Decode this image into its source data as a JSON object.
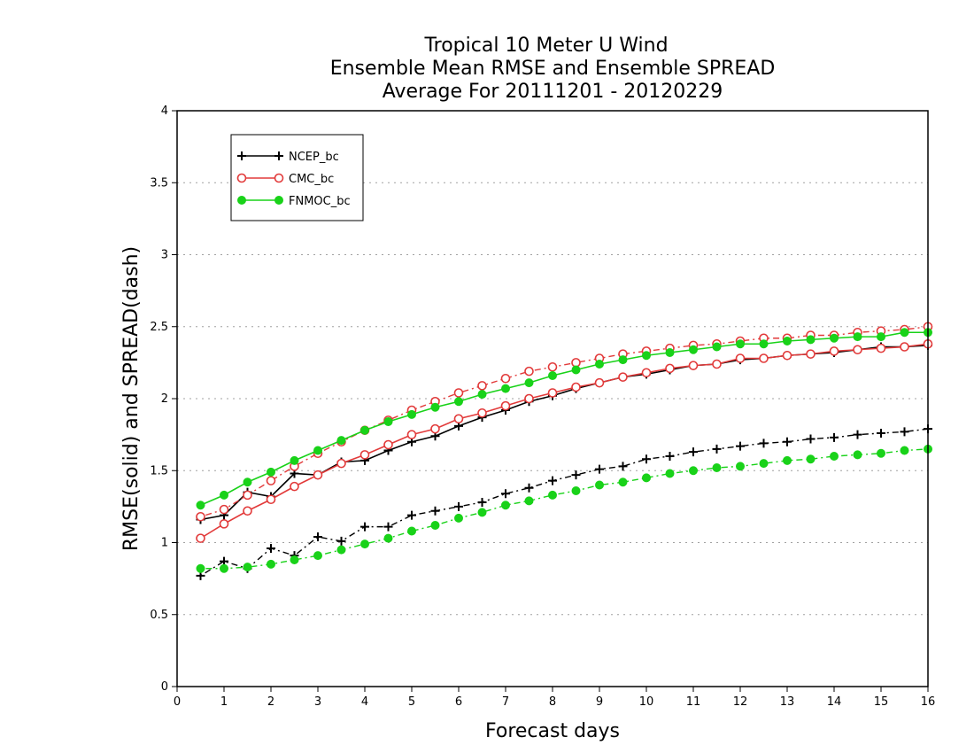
{
  "chart_data": {
    "type": "line",
    "title_lines": [
      "Tropical 10 Meter U Wind",
      "Ensemble Mean RMSE and Ensemble SPREAD",
      "Average For 20111201 - 20120229"
    ],
    "xlabel": "Forecast days",
    "ylabel": "RMSE(solid) and SPREAD(dash)",
    "xlim": [
      0,
      16
    ],
    "ylim": [
      0,
      4
    ],
    "x_ticks": [
      0,
      1,
      2,
      3,
      4,
      5,
      6,
      7,
      8,
      9,
      10,
      11,
      12,
      13,
      14,
      15,
      16
    ],
    "x_tick_labels": [
      "0",
      "1",
      "2",
      "3",
      "4",
      "5",
      "6",
      "7",
      "8",
      "9",
      "10",
      "11",
      "12",
      "13",
      "14",
      "15",
      "16"
    ],
    "y_ticks": [
      0,
      0.5,
      1,
      1.5,
      2,
      2.5,
      3,
      3.5,
      4
    ],
    "y_tick_labels": [
      "0",
      "0.5",
      "1",
      "1.5",
      "2",
      "2.5",
      "3",
      "3.5",
      "4"
    ],
    "grid": "horizontal dotted",
    "legend_position": "top-left",
    "x": [
      0.5,
      1,
      1.5,
      2,
      2.5,
      3,
      3.5,
      4,
      4.5,
      5,
      5.5,
      6,
      6.5,
      7,
      7.5,
      8,
      8.5,
      9,
      9.5,
      10,
      10.5,
      11,
      11.5,
      12,
      12.5,
      13,
      13.5,
      14,
      14.5,
      15,
      15.5,
      16
    ],
    "series": [
      {
        "name": "NCEP_bc",
        "color": "#000000",
        "marker": "plus",
        "rmse": [
          1.16,
          1.19,
          1.35,
          1.32,
          1.48,
          1.47,
          1.56,
          1.57,
          1.64,
          1.7,
          1.74,
          1.81,
          1.87,
          1.92,
          1.98,
          2.02,
          2.07,
          2.11,
          2.15,
          2.17,
          2.2,
          2.23,
          2.24,
          2.27,
          2.28,
          2.3,
          2.31,
          2.32,
          2.34,
          2.36,
          2.36,
          2.37
        ],
        "spread": [
          0.77,
          0.87,
          0.82,
          0.96,
          0.91,
          1.04,
          1.01,
          1.11,
          1.11,
          1.19,
          1.22,
          1.25,
          1.28,
          1.34,
          1.38,
          1.43,
          1.47,
          1.51,
          1.53,
          1.58,
          1.6,
          1.63,
          1.65,
          1.67,
          1.69,
          1.7,
          1.72,
          1.73,
          1.75,
          1.76,
          1.77,
          1.79
        ]
      },
      {
        "name": "CMC_bc",
        "color": "#e23a3a",
        "marker": "open-circle",
        "rmse": [
          1.03,
          1.13,
          1.22,
          1.3,
          1.39,
          1.47,
          1.55,
          1.61,
          1.68,
          1.75,
          1.79,
          1.86,
          1.9,
          1.95,
          2.0,
          2.04,
          2.08,
          2.11,
          2.15,
          2.18,
          2.21,
          2.23,
          2.24,
          2.28,
          2.28,
          2.3,
          2.31,
          2.33,
          2.34,
          2.35,
          2.36,
          2.38
        ],
        "spread": [
          1.18,
          1.23,
          1.33,
          1.43,
          1.53,
          1.62,
          1.7,
          1.78,
          1.85,
          1.92,
          1.98,
          2.04,
          2.09,
          2.14,
          2.19,
          2.22,
          2.25,
          2.28,
          2.31,
          2.33,
          2.35,
          2.37,
          2.38,
          2.4,
          2.42,
          2.42,
          2.44,
          2.44,
          2.46,
          2.47,
          2.48,
          2.5
        ]
      },
      {
        "name": "FNMOC_bc",
        "color": "#19d219",
        "marker": "filled-circle",
        "rmse": [
          1.26,
          1.33,
          1.42,
          1.49,
          1.57,
          1.64,
          1.71,
          1.78,
          1.84,
          1.89,
          1.94,
          1.98,
          2.03,
          2.07,
          2.11,
          2.16,
          2.2,
          2.24,
          2.27,
          2.3,
          2.32,
          2.34,
          2.36,
          2.38,
          2.38,
          2.4,
          2.41,
          2.42,
          2.43,
          2.43,
          2.46,
          2.46
        ],
        "spread": [
          0.82,
          0.82,
          0.83,
          0.85,
          0.88,
          0.91,
          0.95,
          0.99,
          1.03,
          1.08,
          1.12,
          1.17,
          1.21,
          1.26,
          1.29,
          1.33,
          1.36,
          1.4,
          1.42,
          1.45,
          1.48,
          1.5,
          1.52,
          1.53,
          1.55,
          1.57,
          1.58,
          1.6,
          1.61,
          1.62,
          1.64,
          1.65
        ]
      }
    ]
  }
}
